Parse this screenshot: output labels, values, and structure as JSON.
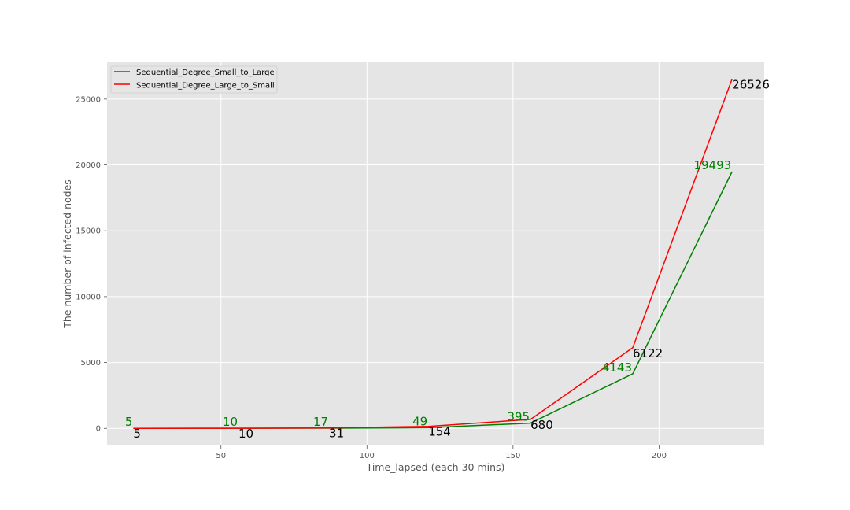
{
  "chart_data": {
    "type": "line",
    "xlabel": "Time_lapsed (each 30 mins)",
    "ylabel": "The number of infected nodes",
    "xlim": [
      11,
      236
    ],
    "ylim": [
      -1300,
      27800
    ],
    "xticks": [
      50,
      100,
      150,
      200
    ],
    "yticks": [
      0,
      5000,
      10000,
      15000,
      20000,
      25000
    ],
    "grid": true,
    "legend_position": "top-left",
    "series": [
      {
        "name": "Sequential_Degree_Small_to_Large",
        "color": "#008000",
        "x": [
          20,
          56,
          87,
          121,
          156,
          191,
          225
        ],
        "y": [
          5,
          10,
          17,
          49,
          395,
          4143,
          19493
        ],
        "labels": [
          "5",
          "10",
          "17",
          "49",
          "395",
          "4143",
          "19493"
        ]
      },
      {
        "name": "Sequential_Degree_Large_to_Small",
        "color": "#ff0000",
        "label_color": "#000000",
        "x": [
          20,
          56,
          87,
          121,
          156,
          191,
          225
        ],
        "y": [
          5,
          10,
          31,
          154,
          680,
          6122,
          26526
        ],
        "labels": [
          "5",
          "10",
          "31",
          "154",
          "680",
          "6122",
          "26526"
        ]
      }
    ]
  }
}
